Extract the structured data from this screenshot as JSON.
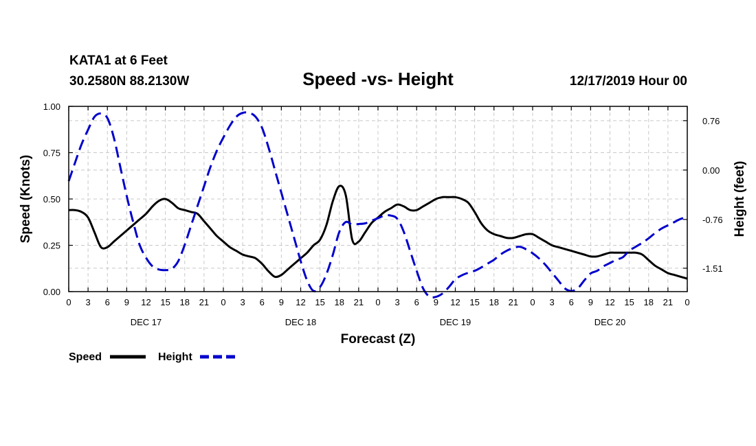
{
  "chart_data": {
    "type": "line",
    "station_line": "KATA1 at 6 Feet",
    "coords_line": "30.2580N 88.2130W",
    "title": "Speed -vs- Height",
    "run_label": "12/17/2019 Hour 00",
    "xlabel": "Forecast (Z)",
    "ylabel": "Speed (Knots)",
    "ylabel_right": "Height (feet)",
    "x_range": [
      0,
      96
    ],
    "ylim": [
      0,
      1.0
    ],
    "ylim_right": [
      -1.87,
      0.98
    ],
    "x_ticks": [
      0,
      3,
      6,
      9,
      12,
      15,
      18,
      21,
      24,
      27,
      30,
      33,
      36,
      39,
      42,
      45,
      48,
      51,
      54,
      57,
      60,
      63,
      66,
      69,
      72,
      75,
      78,
      81,
      84,
      87,
      90,
      93,
      96
    ],
    "x_tick_labels": [
      "0",
      "3",
      "6",
      "9",
      "12",
      "15",
      "18",
      "21",
      "0",
      "3",
      "6",
      "9",
      "12",
      "15",
      "18",
      "21",
      "0",
      "3",
      "6",
      "9",
      "12",
      "15",
      "18",
      "21",
      "0",
      "3",
      "6",
      "9",
      "12",
      "15",
      "18",
      "21",
      "0"
    ],
    "day_labels": [
      {
        "x": 12,
        "label": "DEC 17"
      },
      {
        "x": 36,
        "label": "DEC 18"
      },
      {
        "x": 60,
        "label": "DEC 19"
      },
      {
        "x": 84,
        "label": "DEC 20"
      }
    ],
    "y_ticks": [
      0,
      0.25,
      0.5,
      0.75,
      1.0
    ],
    "y_tick_labels": [
      "0.00",
      "0.25",
      "0.50",
      "0.75",
      "1.00"
    ],
    "y_ticks_right": [
      -1.51,
      -0.76,
      0.0,
      0.76
    ],
    "y_tick_labels_right": [
      "-1.51",
      "-0.76",
      "0.00",
      "0.76"
    ],
    "grid": true,
    "legend_position": "bottom-left",
    "series": [
      {
        "name": "Speed",
        "axis": "left",
        "color": "#000000",
        "dash": "solid",
        "x": [
          0,
          1,
          2,
          3,
          4,
          5,
          6,
          7,
          8,
          9,
          10,
          11,
          12,
          13,
          14,
          15,
          16,
          17,
          18,
          19,
          20,
          21,
          22,
          23,
          24,
          25,
          26,
          27,
          28,
          29,
          30,
          31,
          32,
          33,
          34,
          35,
          36,
          37,
          38,
          39,
          40,
          41,
          42,
          43,
          44,
          45,
          46,
          47,
          48,
          49,
          50,
          51,
          52,
          53,
          54,
          55,
          56,
          57,
          58,
          59,
          60,
          61,
          62,
          63,
          64,
          65,
          66,
          67,
          68,
          69,
          70,
          71,
          72,
          73,
          74,
          75,
          76,
          77,
          78,
          79,
          80,
          81,
          82,
          83,
          84,
          85,
          86,
          87,
          88,
          89,
          90,
          91,
          92,
          93,
          94,
          95,
          96
        ],
        "values": [
          0.44,
          0.44,
          0.43,
          0.4,
          0.32,
          0.24,
          0.24,
          0.27,
          0.3,
          0.33,
          0.36,
          0.39,
          0.42,
          0.46,
          0.49,
          0.5,
          0.48,
          0.45,
          0.44,
          0.43,
          0.42,
          0.38,
          0.34,
          0.3,
          0.27,
          0.24,
          0.22,
          0.2,
          0.19,
          0.18,
          0.15,
          0.11,
          0.08,
          0.09,
          0.12,
          0.15,
          0.18,
          0.21,
          0.25,
          0.28,
          0.36,
          0.49,
          0.57,
          0.52,
          0.28,
          0.27,
          0.32,
          0.37,
          0.4,
          0.43,
          0.45,
          0.47,
          0.46,
          0.44,
          0.44,
          0.46,
          0.48,
          0.5,
          0.51,
          0.51,
          0.51,
          0.5,
          0.48,
          0.43,
          0.37,
          0.33,
          0.31,
          0.3,
          0.29,
          0.29,
          0.3,
          0.31,
          0.31,
          0.29,
          0.27,
          0.25,
          0.24,
          0.23,
          0.22,
          0.21,
          0.2,
          0.19,
          0.19,
          0.2,
          0.21,
          0.21,
          0.21,
          0.21,
          0.21,
          0.2,
          0.17,
          0.14,
          0.12,
          0.1,
          0.09,
          0.08,
          0.07
        ]
      },
      {
        "name": "Height",
        "axis": "right",
        "color": "#0000cc",
        "dash": "dashed",
        "x": [
          0,
          1,
          2,
          3,
          4,
          5,
          6,
          7,
          8,
          9,
          10,
          11,
          12,
          13,
          14,
          15,
          16,
          17,
          18,
          19,
          20,
          21,
          22,
          23,
          24,
          25,
          26,
          27,
          28,
          29,
          30,
          31,
          32,
          33,
          34,
          35,
          36,
          37,
          38,
          39,
          40,
          41,
          42,
          43,
          44,
          45,
          46,
          47,
          48,
          49,
          50,
          51,
          52,
          53,
          54,
          55,
          56,
          57,
          58,
          59,
          60,
          61,
          62,
          63,
          64,
          65,
          66,
          67,
          68,
          69,
          70,
          71,
          72,
          73,
          74,
          75,
          76,
          77,
          78,
          79,
          80,
          81,
          82,
          83,
          84,
          85,
          86,
          87,
          88,
          89,
          90,
          91,
          92,
          93,
          94,
          95,
          96
        ],
        "values": [
          -0.17,
          0.12,
          0.4,
          0.62,
          0.82,
          0.87,
          0.8,
          0.5,
          0.05,
          -0.4,
          -0.8,
          -1.15,
          -1.35,
          -1.48,
          -1.53,
          -1.54,
          -1.52,
          -1.4,
          -1.15,
          -0.85,
          -0.55,
          -0.25,
          0.05,
          0.3,
          0.5,
          0.68,
          0.82,
          0.88,
          0.88,
          0.82,
          0.65,
          0.35,
          0.0,
          -0.35,
          -0.7,
          -1.05,
          -1.4,
          -1.7,
          -1.86,
          -1.8,
          -1.6,
          -1.3,
          -0.95,
          -0.8,
          -0.84,
          -0.83,
          -0.82,
          -0.78,
          -0.74,
          -0.7,
          -0.7,
          -0.75,
          -0.95,
          -1.25,
          -1.55,
          -1.82,
          -1.95,
          -1.95,
          -1.9,
          -1.8,
          -1.68,
          -1.62,
          -1.58,
          -1.55,
          -1.5,
          -1.44,
          -1.38,
          -1.3,
          -1.24,
          -1.2,
          -1.18,
          -1.22,
          -1.28,
          -1.36,
          -1.46,
          -1.58,
          -1.7,
          -1.82,
          -1.86,
          -1.82,
          -1.7,
          -1.59,
          -1.55,
          -1.48,
          -1.43,
          -1.38,
          -1.34,
          -1.24,
          -1.18,
          -1.12,
          -1.05,
          -0.97,
          -0.9,
          -0.85,
          -0.8,
          -0.75,
          -0.73
        ]
      }
    ]
  }
}
